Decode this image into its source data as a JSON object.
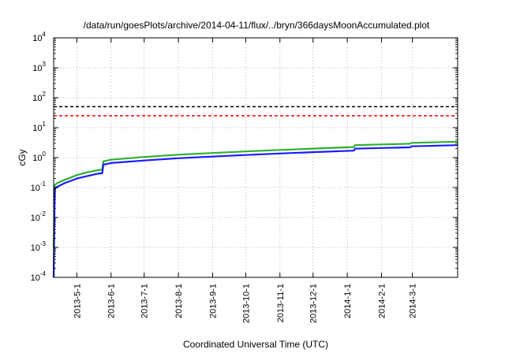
{
  "chart_data": {
    "type": "line",
    "title": "/data/run/goesPlots/archive/2014-04-11/flux/../bryn/366daysMoonAccumulated.plot",
    "xlabel": "Coordinated Universal Time (UTC)",
    "ylabel": "cGy",
    "x_scale": "time",
    "y_scale": "log",
    "xlim": [
      "2013-04-10",
      "2014-04-11"
    ],
    "ylim": [
      0.0001,
      10000
    ],
    "grid": true,
    "x_ticks": [
      "2013-5-1",
      "2013-6-1",
      "2013-7-1",
      "2013-8-1",
      "2013-9-1",
      "2013-10-1",
      "2013-11-1",
      "2013-12-1",
      "2014-1-1",
      "2014-2-1",
      "2014-3-1"
    ],
    "y_ticks": [
      {
        "value": 0.0001,
        "base": "10",
        "exp": "-4"
      },
      {
        "value": 0.001,
        "base": "10",
        "exp": "-3"
      },
      {
        "value": 0.01,
        "base": "10",
        "exp": "-2"
      },
      {
        "value": 0.1,
        "base": "10",
        "exp": "-1"
      },
      {
        "value": 1,
        "base": "10",
        "exp": "0"
      },
      {
        "value": 10,
        "base": "10",
        "exp": "1"
      },
      {
        "value": 100,
        "base": "10",
        "exp": "2"
      },
      {
        "value": 1000,
        "base": "10",
        "exp": "3"
      },
      {
        "value": 10000,
        "base": "10",
        "exp": "4"
      }
    ],
    "series": [
      {
        "color": "#2fb02f",
        "style": "solid",
        "x": [
          "2013-04-10",
          "2013-04-11",
          "2013-04-13",
          "2013-04-20",
          "2013-05-01",
          "2013-05-10",
          "2013-05-20",
          "2013-05-24",
          "2013-05-25",
          "2013-06-01",
          "2013-07-01",
          "2013-08-01",
          "2013-09-01",
          "2013-10-01",
          "2013-11-01",
          "2013-12-01",
          "2014-01-07",
          "2014-01-08",
          "2014-02-01",
          "2014-02-27",
          "2014-02-28",
          "2014-03-15",
          "2014-04-11"
        ],
        "values": [
          0.001,
          0.12,
          0.14,
          0.18,
          0.26,
          0.32,
          0.38,
          0.4,
          0.75,
          0.85,
          1.05,
          1.25,
          1.42,
          1.6,
          1.8,
          2.0,
          2.25,
          2.6,
          2.75,
          2.9,
          3.1,
          3.2,
          3.4
        ]
      },
      {
        "color": "#1a1aff",
        "style": "solid",
        "x": [
          "2013-04-10",
          "2013-04-11",
          "2013-04-13",
          "2013-04-20",
          "2013-05-01",
          "2013-05-10",
          "2013-05-20",
          "2013-05-24",
          "2013-05-25",
          "2013-06-01",
          "2013-07-01",
          "2013-08-01",
          "2013-09-01",
          "2013-10-01",
          "2013-11-01",
          "2013-12-01",
          "2014-01-07",
          "2014-01-08",
          "2014-02-01",
          "2014-02-27",
          "2014-02-28",
          "2014-03-15",
          "2014-04-11"
        ],
        "values": [
          0.0001,
          0.09,
          0.105,
          0.14,
          0.2,
          0.24,
          0.29,
          0.3,
          0.58,
          0.66,
          0.8,
          0.95,
          1.08,
          1.22,
          1.37,
          1.52,
          1.7,
          1.98,
          2.1,
          2.2,
          2.38,
          2.45,
          2.6
        ]
      },
      {
        "color": "#000000",
        "style": "dashed",
        "x": [
          "2013-04-10",
          "2014-04-11"
        ],
        "values": [
          50,
          50
        ]
      },
      {
        "color": "#ff0000",
        "style": "dashed",
        "x": [
          "2013-04-10",
          "2014-04-11"
        ],
        "values": [
          25,
          25
        ]
      }
    ]
  }
}
